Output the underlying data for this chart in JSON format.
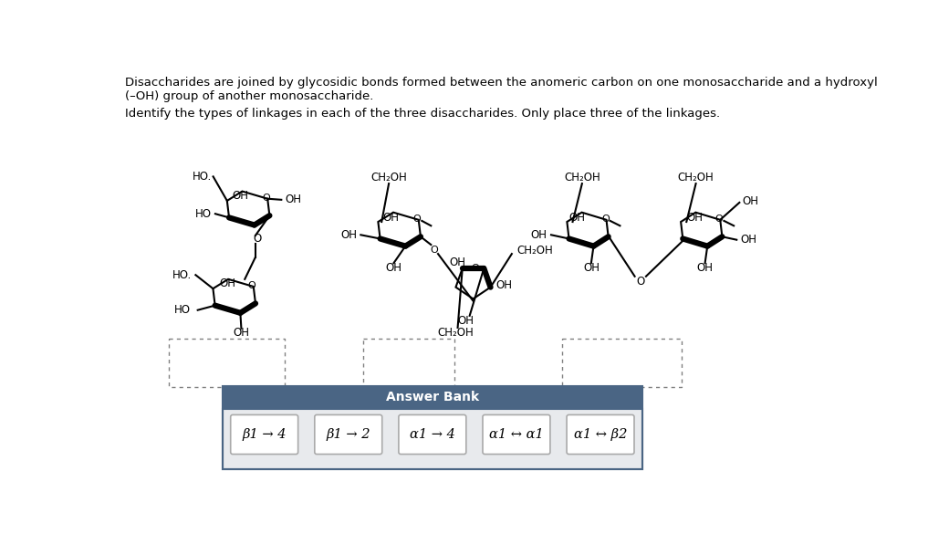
{
  "page_bg": "#ffffff",
  "title_text1": "Disaccharides are joined by glycosidic bonds formed between the anomeric carbon on one monosaccharide and a hydroxyl",
  "title_text2": "(–OH) group of another monosaccharide.",
  "subtitle": "Identify the types of linkages in each of the three disaccharides. Only place three of the linkages.",
  "answer_bank_title": "Answer Bank",
  "answer_bank_bg": "#4a6584",
  "answer_bank_title_color": "#ffffff",
  "answer_items": [
    "β1 → 4",
    "β1 → 2",
    "α1 → 4",
    "α1 ↔ α1",
    "α1 ↔ β2"
  ]
}
